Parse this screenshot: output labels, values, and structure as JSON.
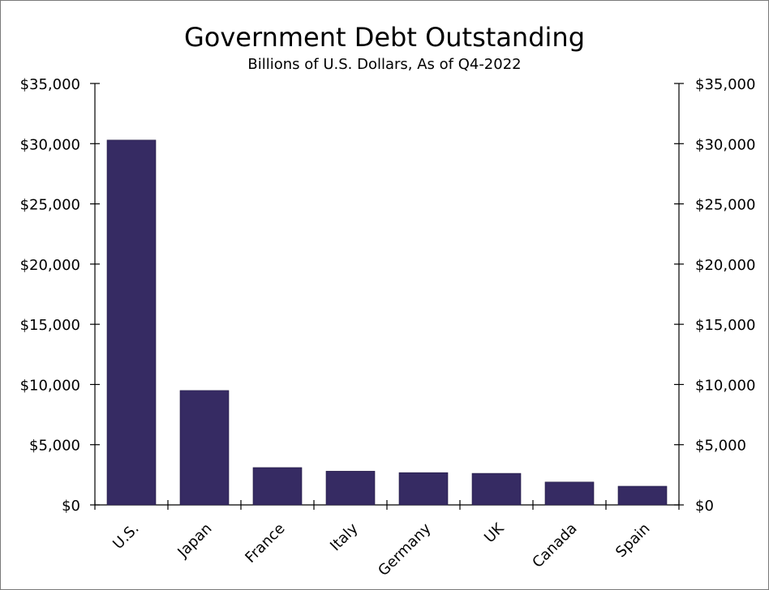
{
  "chart_data": {
    "type": "bar",
    "title": "Government Debt Outstanding",
    "subtitle": "Billions of U.S. Dollars, As of Q4-2022",
    "categories": [
      "U.S.",
      "Japan",
      "France",
      "Italy",
      "Germany",
      "UK",
      "Canada",
      "Spain"
    ],
    "values": [
      30300,
      9500,
      3100,
      2800,
      2680,
      2620,
      1900,
      1550
    ],
    "ylim": [
      0,
      35000
    ],
    "yticks": [
      0,
      5000,
      10000,
      15000,
      20000,
      25000,
      30000,
      35000
    ],
    "ytick_labels": [
      "$0",
      "$5,000",
      "$10,000",
      "$15,000",
      "$20,000",
      "$25,000",
      "$30,000",
      "$35,000"
    ],
    "xlabel": "",
    "ylabel": "",
    "grid": false,
    "legend": "none",
    "bar_color": "#362b63",
    "secondary_y_axis": true
  }
}
